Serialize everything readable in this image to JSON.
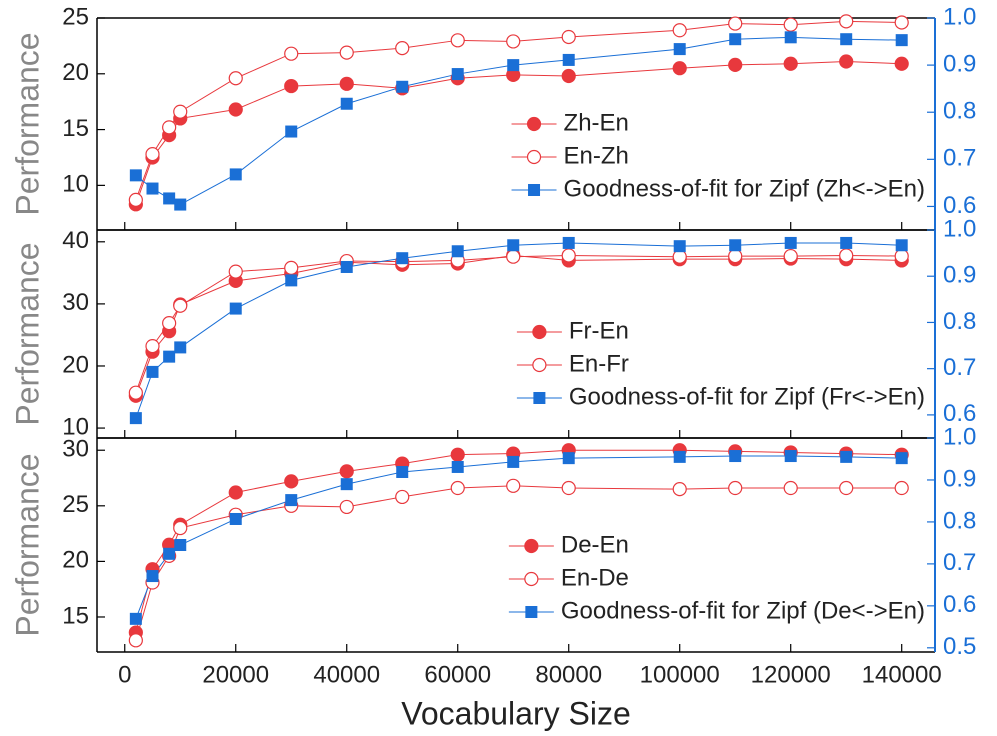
{
  "chart_data": [
    {
      "type": "line",
      "ylabel": "Performance",
      "x": [
        2000,
        5000,
        8000,
        10000,
        20000,
        30000,
        40000,
        50000,
        60000,
        70000,
        80000,
        100000,
        110000,
        120000,
        130000,
        140000
      ],
      "xlim": [
        -5000,
        146000
      ],
      "xticks": [
        0,
        20000,
        40000,
        60000,
        80000,
        100000,
        120000,
        140000
      ],
      "ylim": [
        6,
        25
      ],
      "yticks": [
        10,
        15,
        20,
        25
      ],
      "y2lim": [
        0.55,
        1.0
      ],
      "y2ticks": [
        0.6,
        0.7,
        0.8,
        0.9,
        {
          "value": 1,
          "label": "1.0"
        }
      ],
      "legend": "lower right",
      "series": [
        {
          "name": "Zh-En",
          "color": "#e8383d",
          "marker": "circle",
          "values": [
            8.3,
            12.5,
            14.5,
            16.0,
            16.8,
            18.9,
            19.1,
            18.7,
            19.6,
            19.9,
            19.8,
            20.5,
            20.8,
            20.9,
            21.1,
            20.9
          ]
        },
        {
          "name": "En-Zh",
          "color": "#e8383d",
          "marker": "circle-open",
          "values": [
            8.7,
            12.8,
            15.2,
            16.6,
            19.6,
            21.8,
            21.9,
            22.3,
            23.0,
            22.9,
            23.3,
            23.9,
            24.5,
            24.4,
            24.7,
            24.6
          ]
        },
        {
          "name": "Goodness-of-fit for Zipf (Zh<->En)",
          "color": "#1a6fd6",
          "marker": "square",
          "axis": "y2",
          "values": [
            0.666,
            0.638,
            0.617,
            0.604,
            0.668,
            0.759,
            0.818,
            0.854,
            0.881,
            0.9,
            0.911,
            0.934,
            0.955,
            0.959,
            0.955,
            0.953
          ]
        }
      ]
    },
    {
      "type": "line",
      "ylabel": "Performance",
      "x": [
        2000,
        5000,
        8000,
        10000,
        20000,
        30000,
        40000,
        50000,
        60000,
        70000,
        80000,
        100000,
        110000,
        120000,
        130000,
        140000
      ],
      "xlim": [
        -5000,
        146000
      ],
      "xticks": [
        0,
        20000,
        40000,
        60000,
        80000,
        100000,
        120000,
        140000
      ],
      "ylim": [
        8.4,
        41.9
      ],
      "yticks": [
        10,
        20,
        30,
        40
      ],
      "y2lim": [
        0.55,
        1.0
      ],
      "y2ticks": [
        0.6,
        0.7,
        0.8,
        0.9,
        {
          "value": 1,
          "label": "1.0"
        }
      ],
      "legend": "lower right",
      "series": [
        {
          "name": "Fr-En",
          "color": "#e8383d",
          "marker": "circle",
          "values": [
            15.2,
            22.3,
            25.6,
            29.9,
            33.7,
            34.9,
            36.7,
            36.3,
            36.5,
            37.8,
            37.0,
            37.2,
            37.2,
            37.3,
            37.2,
            37.0
          ]
        },
        {
          "name": "En-Fr",
          "color": "#e8383d",
          "marker": "circle-open",
          "values": [
            15.7,
            23.2,
            26.9,
            29.7,
            35.2,
            35.8,
            36.9,
            36.8,
            37.0,
            37.6,
            37.8,
            37.6,
            37.7,
            37.7,
            37.8,
            37.7
          ]
        },
        {
          "name": "Goodness-of-fit for Zipf (Fr<->En)",
          "color": "#1a6fd6",
          "marker": "square",
          "axis": "y2",
          "values": [
            0.593,
            0.693,
            0.726,
            0.746,
            0.83,
            0.891,
            0.92,
            0.939,
            0.954,
            0.967,
            0.972,
            0.965,
            0.967,
            0.972,
            0.972,
            0.967
          ]
        }
      ]
    },
    {
      "type": "line",
      "ylabel": "Performance",
      "xlabel": "Vocabulary Size",
      "x": [
        2000,
        5000,
        8000,
        10000,
        20000,
        30000,
        40000,
        50000,
        60000,
        70000,
        80000,
        100000,
        110000,
        120000,
        130000,
        140000
      ],
      "xlim": [
        -5000,
        146000
      ],
      "xticks": [
        0,
        20000,
        40000,
        60000,
        80000,
        100000,
        120000,
        140000
      ],
      "ylim": [
        11.85,
        31.1
      ],
      "yticks": [
        15,
        20,
        25,
        30
      ],
      "y2lim": [
        0.49,
        1.0
      ],
      "y2ticks": [
        0.5,
        0.6,
        0.7,
        0.8,
        0.9,
        {
          "value": 1,
          "label": "1.0"
        }
      ],
      "legend": "lower right",
      "series": [
        {
          "name": "De-En",
          "color": "#e8383d",
          "marker": "circle",
          "values": [
            13.6,
            19.3,
            21.5,
            23.3,
            26.2,
            27.2,
            28.1,
            28.8,
            29.6,
            29.7,
            30.0,
            30.0,
            29.9,
            29.8,
            29.7,
            29.6
          ]
        },
        {
          "name": "En-De",
          "color": "#e8383d",
          "marker": "circle-open",
          "values": [
            12.9,
            18.1,
            20.5,
            23.0,
            24.2,
            25.0,
            24.9,
            25.8,
            26.6,
            26.8,
            26.6,
            26.5,
            26.6,
            26.6,
            26.6,
            26.6
          ]
        },
        {
          "name": "Goodness-of-fit for Zipf (De<->En)",
          "color": "#1a6fd6",
          "marker": "square",
          "axis": "y2",
          "values": [
            0.569,
            0.671,
            0.724,
            0.745,
            0.807,
            0.852,
            0.89,
            0.919,
            0.931,
            0.943,
            0.952,
            0.955,
            0.957,
            0.957,
            0.955,
            0.952
          ]
        }
      ]
    }
  ]
}
